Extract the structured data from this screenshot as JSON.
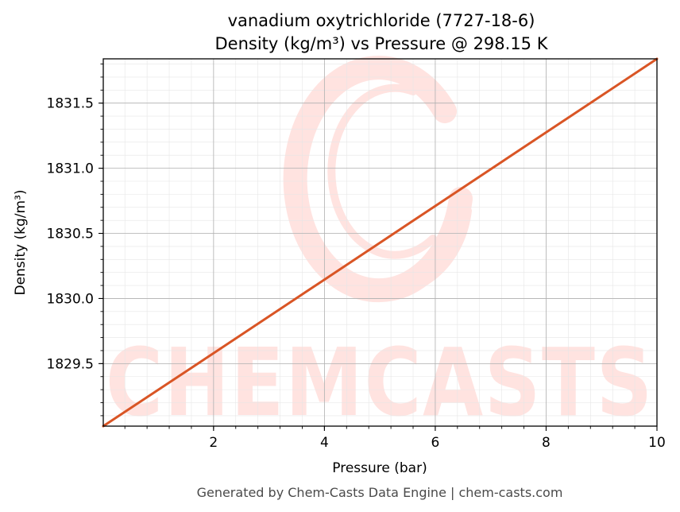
{
  "chart_data": {
    "type": "line",
    "title": "vanadium oxytrichloride (7727-18-6)",
    "subtitle": "Density (kg/m³) vs Pressure @ 298.15 K",
    "xlabel": "Pressure (bar)",
    "ylabel": "Density (kg/m³)",
    "xlim": [
      0.01,
      10
    ],
    "ylim": [
      1829.02,
      1831.84
    ],
    "x_ticks": [
      2,
      4,
      6,
      8,
      10
    ],
    "x_tick_labels": [
      "2",
      "4",
      "6",
      "8",
      "10"
    ],
    "y_ticks": [
      1829.5,
      1830.0,
      1830.5,
      1831.0,
      1831.5
    ],
    "y_tick_labels": [
      "1829.5",
      "1830.0",
      "1830.5",
      "1831.0",
      "1831.5"
    ],
    "grid": true,
    "legend": "none",
    "series": [
      {
        "color": "#d95525",
        "x": [
          0.01,
          2,
          4,
          6,
          8,
          10
        ],
        "y": [
          1829.02,
          1829.58,
          1830.145,
          1830.71,
          1831.275,
          1831.84
        ]
      }
    ]
  },
  "watermark": {
    "text": "CHEMCASTS",
    "color": "#ffe3e0"
  },
  "footer": {
    "text": "Generated by Chem-Casts Data Engine | chem-casts.com"
  }
}
